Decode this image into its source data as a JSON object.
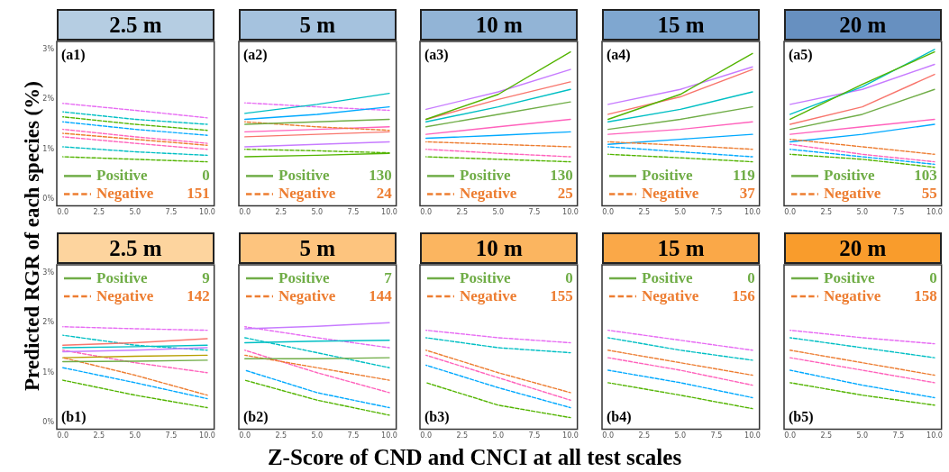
{
  "chart_data": [
    {
      "type": "line",
      "ylabel": "Predicted RGR of each species (%)",
      "title": "2.5 m",
      "annotations": [
        "(a1)",
        "0",
        "151"
      ],
      "legend": "bottom left",
      "x": [
        0,
        5,
        10
      ],
      "xlim": [
        -0.42,
        10.48
      ],
      "ylim": [
        -0.13,
        3.16
      ],
      "xticks": [
        {
          "value": 0,
          "label": "0.0"
        },
        {
          "value": 2.5,
          "label": "2.5"
        },
        {
          "value": 5,
          "label": "5.0"
        },
        {
          "value": 7.5,
          "label": "7.5"
        },
        {
          "value": 10,
          "label": "10.0"
        }
      ],
      "yticks": [
        {
          "value": 0,
          "label": "0%"
        },
        {
          "value": 1,
          "label": "1%"
        },
        {
          "value": 2,
          "label": "2%"
        },
        {
          "value": 3,
          "label": "3%"
        }
      ],
      "series": [
        {
          "name": "Positive",
          "color": "#70ad47",
          "line_style": "solid",
          "values": [
            null,
            null,
            null
          ]
        },
        {
          "name": "Negative",
          "color": "#ed7d31",
          "line_style": "dashed",
          "values": [
            1.32,
            1.2,
            1.08
          ]
        },
        {
          "color": "#e76bf3",
          "line_style": "dashed",
          "values": [
            1.92,
            1.78,
            1.63
          ]
        },
        {
          "color": "#00bfc4",
          "line_style": "dashed",
          "values": [
            1.75,
            1.6,
            1.5
          ]
        },
        {
          "color": "#53b400",
          "line_style": "dashed",
          "values": [
            1.65,
            1.5,
            1.38
          ]
        },
        {
          "color": "#00a9ff",
          "line_style": "dashed",
          "values": [
            1.55,
            1.4,
            1.28
          ]
        },
        {
          "color": "#ff62bc",
          "line_style": "dashed",
          "values": [
            1.4,
            1.25,
            1.12
          ]
        },
        {
          "color": "#ff62bc",
          "line_style": "dashed",
          "values": [
            1.25,
            1.12,
            1.0
          ]
        },
        {
          "color": "#00bfc4",
          "line_style": "dashed",
          "values": [
            1.05,
            0.95,
            0.88
          ]
        },
        {
          "color": "#53b400",
          "line_style": "dashed",
          "values": [
            0.85,
            0.8,
            0.75
          ]
        }
      ]
    },
    {
      "type": "line",
      "title": "5 m",
      "annotations": [
        "(a2)",
        "130",
        "24"
      ],
      "legend": "bottom left",
      "tick_labels": "x",
      "x": [
        0,
        5,
        10
      ],
      "xlim": [
        -0.42,
        10.48
      ],
      "ylim": [
        -0.13,
        3.16
      ],
      "xticks": [
        {
          "value": 0,
          "label": "0.0"
        },
        {
          "value": 2.5,
          "label": "2.5"
        },
        {
          "value": 5,
          "label": "5.0"
        },
        {
          "value": 7.5,
          "label": "7.5"
        },
        {
          "value": 10,
          "label": "10.0"
        }
      ],
      "series": [
        {
          "name": "Positive",
          "color": "#70ad47",
          "line_style": "solid",
          "values": [
            1.5,
            1.55,
            1.6
          ]
        },
        {
          "name": "Negative",
          "color": "#ed7d31",
          "line_style": "dashed",
          "values": [
            1.55,
            1.45,
            1.38
          ]
        },
        {
          "color": "#00bfc4",
          "line_style": "solid",
          "values": [
            1.72,
            1.9,
            2.12
          ]
        },
        {
          "color": "#00a9ff",
          "line_style": "solid",
          "values": [
            1.6,
            1.7,
            1.85
          ]
        },
        {
          "color": "#ff62bc",
          "line_style": "solid",
          "values": [
            1.35,
            1.4,
            1.45
          ]
        },
        {
          "color": "#f8766d",
          "line_style": "solid",
          "values": [
            1.25,
            1.3,
            1.35
          ]
        },
        {
          "color": "#c77cff",
          "line_style": "solid",
          "values": [
            1.05,
            1.1,
            1.15
          ]
        },
        {
          "color": "#53b400",
          "line_style": "solid",
          "values": [
            0.85,
            0.88,
            0.92
          ]
        },
        {
          "color": "#e76bf3",
          "line_style": "dashed",
          "values": [
            1.93,
            1.85,
            1.78
          ]
        },
        {
          "color": "#53b400",
          "line_style": "dashed",
          "values": [
            1.0,
            0.97,
            0.93
          ]
        }
      ]
    },
    {
      "type": "line",
      "title": "10 m",
      "annotations": [
        "(a3)",
        "130",
        "25"
      ],
      "legend": "bottom left",
      "tick_labels": "x",
      "x": [
        0,
        5,
        10
      ],
      "xlim": [
        -0.42,
        10.48
      ],
      "ylim": [
        -0.13,
        3.16
      ],
      "xticks": [
        {
          "value": 0,
          "label": "0.0"
        },
        {
          "value": 2.5,
          "label": "2.5"
        },
        {
          "value": 5,
          "label": "5.0"
        },
        {
          "value": 7.5,
          "label": "7.5"
        },
        {
          "value": 10,
          "label": "10.0"
        }
      ],
      "series": [
        {
          "name": "Positive",
          "color": "#70ad47",
          "line_style": "solid",
          "values": [
            1.45,
            1.7,
            1.95
          ]
        },
        {
          "name": "Negative",
          "color": "#ed7d31",
          "line_style": "dashed",
          "values": [
            1.15,
            1.1,
            1.05
          ]
        },
        {
          "color": "#53b400",
          "line_style": "solid",
          "values": [
            1.6,
            2.1,
            2.95
          ]
        },
        {
          "color": "#c77cff",
          "line_style": "solid",
          "values": [
            1.8,
            2.15,
            2.6
          ]
        },
        {
          "color": "#f8766d",
          "line_style": "solid",
          "values": [
            1.6,
            2.0,
            2.35
          ]
        },
        {
          "color": "#00bfc4",
          "line_style": "solid",
          "values": [
            1.55,
            1.85,
            2.2
          ]
        },
        {
          "color": "#ff62bc",
          "line_style": "solid",
          "values": [
            1.3,
            1.45,
            1.6
          ]
        },
        {
          "color": "#00a9ff",
          "line_style": "solid",
          "values": [
            1.22,
            1.28,
            1.35
          ]
        },
        {
          "color": "#53b400",
          "line_style": "dashed",
          "values": [
            0.85,
            0.8,
            0.75
          ]
        },
        {
          "color": "#ff62bc",
          "line_style": "dashed",
          "values": [
            1.0,
            0.92,
            0.85
          ]
        }
      ]
    },
    {
      "type": "line",
      "title": "15 m",
      "annotations": [
        "(a4)",
        "119",
        "37"
      ],
      "legend": "bottom left",
      "tick_labels": "x",
      "x": [
        0,
        5,
        10
      ],
      "xlim": [
        -0.42,
        10.48
      ],
      "ylim": [
        -0.13,
        3.16
      ],
      "xticks": [
        {
          "value": 0,
          "label": "0.0"
        },
        {
          "value": 2.5,
          "label": "2.5"
        },
        {
          "value": 5,
          "label": "5.0"
        },
        {
          "value": 7.5,
          "label": "7.5"
        },
        {
          "value": 10,
          "label": "10.0"
        }
      ],
      "series": [
        {
          "name": "Positive",
          "color": "#70ad47",
          "line_style": "solid",
          "values": [
            1.4,
            1.6,
            1.85
          ]
        },
        {
          "name": "Negative",
          "color": "#ed7d31",
          "line_style": "dashed",
          "values": [
            1.15,
            1.08,
            1.0
          ]
        },
        {
          "color": "#53b400",
          "line_style": "solid",
          "values": [
            1.6,
            2.1,
            2.92
          ]
        },
        {
          "color": "#c77cff",
          "line_style": "solid",
          "values": [
            1.9,
            2.2,
            2.65
          ]
        },
        {
          "color": "#f8766d",
          "line_style": "solid",
          "values": [
            1.7,
            2.05,
            2.6
          ]
        },
        {
          "color": "#00bfc4",
          "line_style": "solid",
          "values": [
            1.55,
            1.8,
            2.15
          ]
        },
        {
          "color": "#ff62bc",
          "line_style": "solid",
          "values": [
            1.3,
            1.4,
            1.55
          ]
        },
        {
          "color": "#00a9ff",
          "line_style": "solid",
          "values": [
            1.1,
            1.2,
            1.3
          ]
        },
        {
          "color": "#53b400",
          "line_style": "dashed",
          "values": [
            0.9,
            0.83,
            0.75
          ]
        },
        {
          "color": "#00a9ff",
          "line_style": "dashed",
          "values": [
            1.05,
            0.95,
            0.85
          ]
        }
      ]
    },
    {
      "type": "line",
      "title": "20 m",
      "annotations": [
        "(a5)",
        "103",
        "55"
      ],
      "legend": "bottom left",
      "tick_labels": "x",
      "x": [
        0,
        5,
        10
      ],
      "xlim": [
        -0.42,
        10.48
      ],
      "ylim": [
        -0.13,
        3.16
      ],
      "xticks": [
        {
          "value": 0,
          "label": "0.0"
        },
        {
          "value": 2.5,
          "label": "2.5"
        },
        {
          "value": 5,
          "label": "5.0"
        },
        {
          "value": 7.5,
          "label": "7.5"
        },
        {
          "value": 10,
          "label": "10.0"
        }
      ],
      "series": [
        {
          "name": "Positive",
          "color": "#70ad47",
          "line_style": "solid",
          "values": [
            1.4,
            1.7,
            2.2
          ]
        },
        {
          "name": "Negative",
          "color": "#ed7d31",
          "line_style": "dashed",
          "values": [
            1.2,
            1.05,
            0.9
          ]
        },
        {
          "color": "#53b400",
          "line_style": "solid",
          "values": [
            1.6,
            2.3,
            2.95
          ]
        },
        {
          "color": "#00bfc4",
          "line_style": "solid",
          "values": [
            1.7,
            2.25,
            3.0
          ]
        },
        {
          "color": "#c77cff",
          "line_style": "solid",
          "values": [
            1.9,
            2.2,
            2.7
          ]
        },
        {
          "color": "#f8766d",
          "line_style": "solid",
          "values": [
            1.5,
            1.85,
            2.5
          ]
        },
        {
          "color": "#ff62bc",
          "line_style": "solid",
          "values": [
            1.3,
            1.45,
            1.6
          ]
        },
        {
          "color": "#00a9ff",
          "line_style": "solid",
          "values": [
            1.15,
            1.3,
            1.5
          ]
        },
        {
          "color": "#00a9ff",
          "line_style": "dashed",
          "values": [
            1.0,
            0.85,
            0.7
          ]
        },
        {
          "color": "#53b400",
          "line_style": "dashed",
          "values": [
            0.9,
            0.8,
            0.64
          ]
        },
        {
          "color": "#ff62bc",
          "line_style": "dashed",
          "values": [
            1.1,
            0.9,
            0.75
          ]
        }
      ]
    },
    {
      "type": "line",
      "title": "2.5 m",
      "annotations": [
        "(b1)",
        "9",
        "142"
      ],
      "legend": "top left",
      "x": [
        0,
        5,
        10
      ],
      "xlim": [
        -0.42,
        10.48
      ],
      "ylim": [
        -0.13,
        3.16
      ],
      "xticks": [
        {
          "value": 0,
          "label": "0.0"
        },
        {
          "value": 2.5,
          "label": "2.5"
        },
        {
          "value": 5,
          "label": "5.0"
        },
        {
          "value": 7.5,
          "label": "7.5"
        },
        {
          "value": 10,
          "label": "10.0"
        }
      ],
      "yticks": [
        {
          "value": 0,
          "label": "0%"
        },
        {
          "value": 1,
          "label": "1%"
        },
        {
          "value": 2,
          "label": "2%"
        },
        {
          "value": 3,
          "label": "3%"
        }
      ],
      "series": [
        {
          "name": "Positive",
          "color": "#70ad47",
          "line_style": "solid",
          "values": [
            1.22,
            1.23,
            1.25
          ]
        },
        {
          "name": "Negative",
          "color": "#ed7d31",
          "line_style": "dashed",
          "values": [
            1.3,
            0.95,
            0.55
          ]
        },
        {
          "color": "#f8766d",
          "line_style": "solid",
          "values": [
            1.55,
            1.6,
            1.68
          ]
        },
        {
          "color": "#00bfc4",
          "line_style": "solid",
          "values": [
            1.5,
            1.52,
            1.55
          ]
        },
        {
          "color": "#c77cff",
          "line_style": "solid",
          "values": [
            1.42,
            1.45,
            1.5
          ]
        },
        {
          "color": "#b79f00",
          "line_style": "solid",
          "values": [
            1.3,
            1.33,
            1.35
          ]
        },
        {
          "color": "#e76bf3",
          "line_style": "dashed",
          "values": [
            1.92,
            1.88,
            1.85
          ]
        },
        {
          "color": "#00bfc4",
          "line_style": "dashed",
          "values": [
            1.75,
            1.55,
            1.45
          ]
        },
        {
          "color": "#ff62bc",
          "line_style": "dashed",
          "values": [
            1.45,
            1.2,
            1.0
          ]
        },
        {
          "color": "#00a9ff",
          "line_style": "dashed",
          "values": [
            1.1,
            0.8,
            0.48
          ]
        },
        {
          "color": "#53b400",
          "line_style": "dashed",
          "values": [
            0.85,
            0.55,
            0.3
          ]
        }
      ]
    },
    {
      "type": "line",
      "title": "5 m",
      "annotations": [
        "(b2)",
        "7",
        "144"
      ],
      "legend": "top left",
      "tick_labels": "x",
      "x": [
        0,
        5,
        10
      ],
      "xlim": [
        -0.42,
        10.48
      ],
      "ylim": [
        -0.13,
        3.16
      ],
      "xticks": [
        {
          "value": 0,
          "label": "0.0"
        },
        {
          "value": 2.5,
          "label": "2.5"
        },
        {
          "value": 5,
          "label": "5.0"
        },
        {
          "value": 7.5,
          "label": "7.5"
        },
        {
          "value": 10,
          "label": "10.0"
        }
      ],
      "series": [
        {
          "name": "Positive",
          "color": "#70ad47",
          "line_style": "solid",
          "values": [
            1.28,
            1.28,
            1.3
          ]
        },
        {
          "name": "Negative",
          "color": "#ed7d31",
          "line_style": "dashed",
          "values": [
            1.35,
            1.1,
            0.85
          ]
        },
        {
          "color": "#c77cff",
          "line_style": "solid",
          "values": [
            1.88,
            1.93,
            2.0
          ]
        },
        {
          "color": "#00bfc4",
          "line_style": "solid",
          "values": [
            1.6,
            1.63,
            1.65
          ]
        },
        {
          "color": "#e76bf3",
          "line_style": "dashed",
          "values": [
            1.92,
            1.7,
            1.5
          ]
        },
        {
          "color": "#00bfc4",
          "line_style": "dashed",
          "values": [
            1.7,
            1.4,
            1.1
          ]
        },
        {
          "color": "#ff62bc",
          "line_style": "dashed",
          "values": [
            1.45,
            1.0,
            0.6
          ]
        },
        {
          "color": "#00a9ff",
          "line_style": "dashed",
          "values": [
            1.05,
            0.6,
            0.3
          ]
        },
        {
          "color": "#53b400",
          "line_style": "dashed",
          "values": [
            0.85,
            0.45,
            0.15
          ]
        }
      ]
    },
    {
      "type": "line",
      "title": "10 m",
      "xlabel": "Z-Score of CND and CNCI at all test scales",
      "annotations": [
        "(b3)",
        "0",
        "155"
      ],
      "legend": "top left",
      "tick_labels": "x",
      "x": [
        0,
        5,
        10
      ],
      "xlim": [
        -0.42,
        10.48
      ],
      "ylim": [
        -0.13,
        3.16
      ],
      "xticks": [
        {
          "value": 0,
          "label": "0.0"
        },
        {
          "value": 2.5,
          "label": "2.5"
        },
        {
          "value": 5,
          "label": "5.0"
        },
        {
          "value": 7.5,
          "label": "7.5"
        },
        {
          "value": 10,
          "label": "10.0"
        }
      ],
      "series": [
        {
          "name": "Positive",
          "color": "#70ad47",
          "line_style": "solid",
          "values": [
            null,
            null,
            null
          ]
        },
        {
          "name": "Negative",
          "color": "#ed7d31",
          "line_style": "dashed",
          "values": [
            1.45,
            1.0,
            0.6
          ]
        },
        {
          "color": "#e76bf3",
          "line_style": "dashed",
          "values": [
            1.85,
            1.7,
            1.6
          ]
        },
        {
          "color": "#00bfc4",
          "line_style": "dashed",
          "values": [
            1.7,
            1.5,
            1.4
          ]
        },
        {
          "color": "#ff62bc",
          "line_style": "dashed",
          "values": [
            1.35,
            0.9,
            0.45
          ]
        },
        {
          "color": "#00a9ff",
          "line_style": "dashed",
          "values": [
            1.15,
            0.7,
            0.3
          ]
        },
        {
          "color": "#53b400",
          "line_style": "dashed",
          "values": [
            0.8,
            0.35,
            0.1
          ]
        }
      ]
    },
    {
      "type": "line",
      "title": "15 m",
      "annotations": [
        "(b4)",
        "0",
        "156"
      ],
      "legend": "top left",
      "tick_labels": "x",
      "x": [
        0,
        5,
        10
      ],
      "xlim": [
        -0.42,
        10.48
      ],
      "ylim": [
        -0.13,
        3.16
      ],
      "xticks": [
        {
          "value": 0,
          "label": "0.0"
        },
        {
          "value": 2.5,
          "label": "2.5"
        },
        {
          "value": 5,
          "label": "5.0"
        },
        {
          "value": 7.5,
          "label": "7.5"
        },
        {
          "value": 10,
          "label": "10.0"
        }
      ],
      "series": [
        {
          "name": "Positive",
          "color": "#70ad47",
          "line_style": "solid",
          "values": [
            null,
            null,
            null
          ]
        },
        {
          "name": "Negative",
          "color": "#ed7d31",
          "line_style": "dashed",
          "values": [
            1.45,
            1.2,
            0.95
          ]
        },
        {
          "color": "#e76bf3",
          "line_style": "dashed",
          "values": [
            1.85,
            1.65,
            1.45
          ]
        },
        {
          "color": "#00bfc4",
          "line_style": "dashed",
          "values": [
            1.7,
            1.45,
            1.25
          ]
        },
        {
          "color": "#ff62bc",
          "line_style": "dashed",
          "values": [
            1.3,
            1.05,
            0.75
          ]
        },
        {
          "color": "#00a9ff",
          "line_style": "dashed",
          "values": [
            1.05,
            0.8,
            0.5
          ]
        },
        {
          "color": "#53b400",
          "line_style": "dashed",
          "values": [
            0.8,
            0.55,
            0.28
          ]
        }
      ]
    },
    {
      "type": "line",
      "title": "20 m",
      "annotations": [
        "(b5)",
        "0",
        "158"
      ],
      "legend": "top left",
      "tick_labels": "x",
      "x": [
        0,
        5,
        10
      ],
      "xlim": [
        -0.42,
        10.48
      ],
      "ylim": [
        -0.13,
        3.16
      ],
      "xticks": [
        {
          "value": 0,
          "label": "0.0"
        },
        {
          "value": 2.5,
          "label": "2.5"
        },
        {
          "value": 5,
          "label": "5.0"
        },
        {
          "value": 7.5,
          "label": "7.5"
        },
        {
          "value": 10,
          "label": "10.0"
        }
      ],
      "series": [
        {
          "name": "Positive",
          "color": "#70ad47",
          "line_style": "solid",
          "values": [
            null,
            null,
            null
          ]
        },
        {
          "name": "Negative",
          "color": "#ed7d31",
          "line_style": "dashed",
          "values": [
            1.45,
            1.2,
            0.95
          ]
        },
        {
          "color": "#e76bf3",
          "line_style": "dashed",
          "values": [
            1.85,
            1.7,
            1.58
          ]
        },
        {
          "color": "#00bfc4",
          "line_style": "dashed",
          "values": [
            1.7,
            1.5,
            1.3
          ]
        },
        {
          "color": "#ff62bc",
          "line_style": "dashed",
          "values": [
            1.3,
            1.05,
            0.8
          ]
        },
        {
          "color": "#00a9ff",
          "line_style": "dashed",
          "values": [
            1.05,
            0.75,
            0.5
          ]
        },
        {
          "color": "#53b400",
          "line_style": "dashed",
          "values": [
            0.8,
            0.55,
            0.35
          ]
        }
      ]
    }
  ]
}
